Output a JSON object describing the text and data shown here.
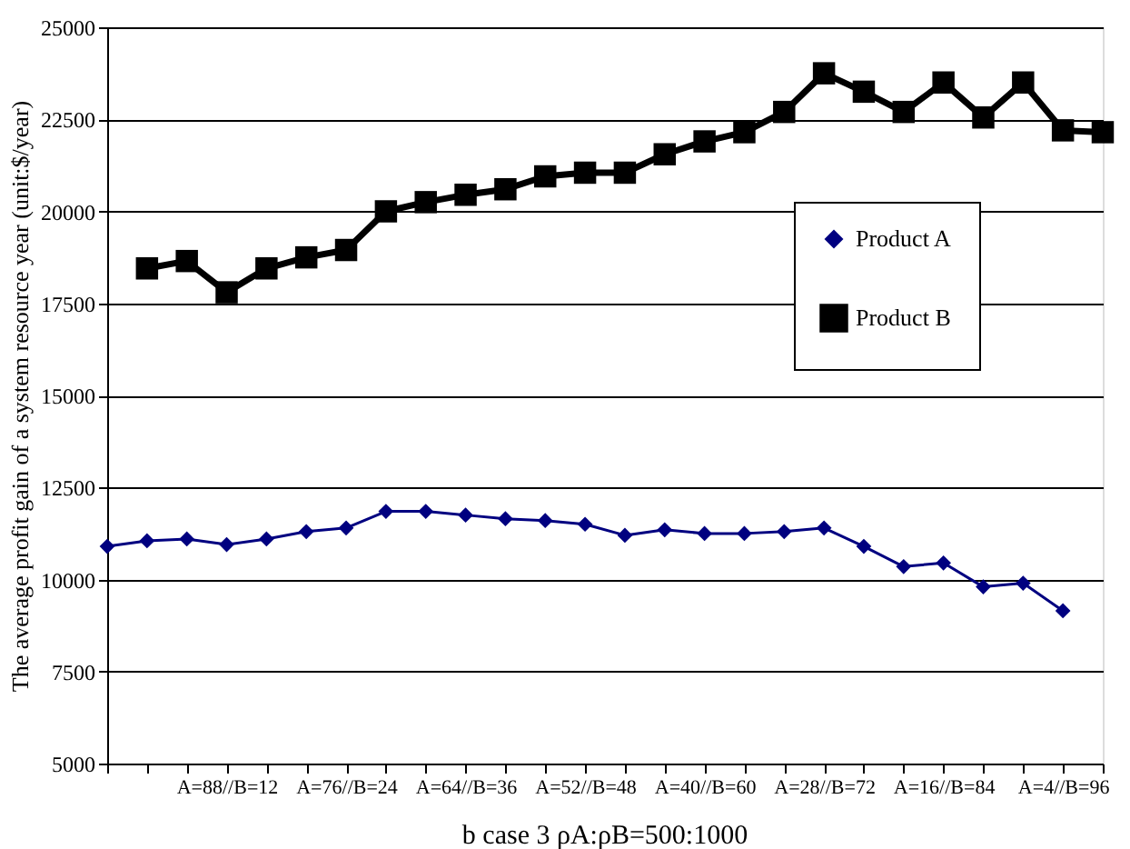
{
  "chart_data": {
    "type": "line",
    "title": "b  case 3 ρA:ρB=500:1000",
    "ylabel": "The average profit gain of a system resource year (unit:$/year)",
    "categories": [
      null,
      null,
      null,
      "A=88//B=12",
      null,
      null,
      "A=76//B=24",
      null,
      null,
      "A=64//B=36",
      null,
      null,
      "A=52//B=48",
      null,
      null,
      "A=40//B=60",
      null,
      null,
      "A=28//B=72",
      null,
      null,
      "A=16//B=84",
      null,
      null,
      "A=4//B=96",
      null
    ],
    "series": [
      {
        "name": "Product A",
        "color": "#000080",
        "marker": "diamond",
        "values": [
          10900,
          11050,
          11100,
          10950,
          11100,
          11300,
          11400,
          11850,
          11850,
          11750,
          11650,
          11600,
          11500,
          11200,
          11350,
          11250,
          11250,
          11300,
          11400,
          10900,
          10350,
          10450,
          9800,
          9900,
          9150,
          null
        ]
      },
      {
        "name": "Product B",
        "color": "#000000",
        "marker": "square",
        "values": [
          null,
          18450,
          18650,
          17800,
          18450,
          18750,
          18950,
          20000,
          20250,
          20450,
          20600,
          20950,
          21050,
          21050,
          21550,
          21900,
          22150,
          22700,
          23750,
          23250,
          22700,
          23500,
          22550,
          23500,
          22200,
          22150
        ]
      }
    ],
    "ylim": [
      5000,
      25000
    ],
    "yticks": [
      5000,
      7500,
      10000,
      12500,
      15000,
      17500,
      20000,
      22500,
      25000
    ],
    "grid": "y",
    "legend": "right",
    "line_style": "solid"
  }
}
